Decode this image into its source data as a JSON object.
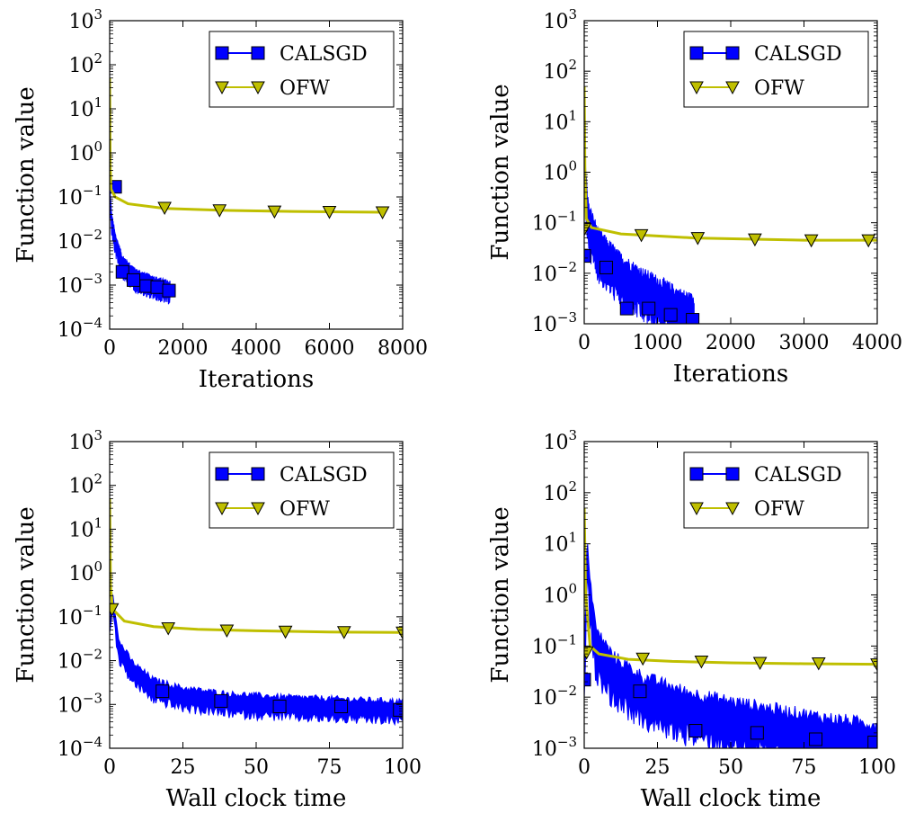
{
  "chart_data": [
    {
      "type": "line",
      "xlabel": "Iterations",
      "ylabel": "Function value",
      "yscale": "log",
      "xlim": [
        0,
        8000
      ],
      "ylim": [
        0.0001,
        1000
      ],
      "xticks": [
        0,
        2000,
        4000,
        6000,
        8000
      ],
      "xtick_labels": [
        "0",
        "2000",
        "4000",
        "6000",
        "8000"
      ],
      "yticks": [
        -4,
        -3,
        -2,
        -1,
        0,
        1,
        2,
        3
      ],
      "grid": false,
      "legend_position": "top-right",
      "series": [
        {
          "name": "CALSGD",
          "color": "#0000ff",
          "marker": "square",
          "noise_band": 0.35,
          "line": [
            [
              0,
              0.15
            ],
            [
              50,
              0.03
            ],
            [
              150,
              0.01
            ],
            [
              350,
              0.003
            ],
            [
              700,
              0.0015
            ],
            [
              1100,
              0.0011
            ],
            [
              1400,
              0.0009
            ],
            [
              1650,
              0.0008
            ]
          ],
          "markers": [
            [
              150,
              0.17
            ],
            [
              350,
              0.002
            ],
            [
              650,
              0.0013
            ],
            [
              1000,
              0.00095
            ],
            [
              1300,
              0.0009
            ],
            [
              1620,
              0.00075
            ]
          ]
        },
        {
          "name": "OFW",
          "color": "#bfbf00",
          "marker": "triangle_down",
          "line": [
            [
              0,
              50
            ],
            [
              15,
              0.5
            ],
            [
              40,
              0.15
            ],
            [
              150,
              0.1
            ],
            [
              500,
              0.07
            ],
            [
              1500,
              0.055
            ],
            [
              3000,
              0.05
            ],
            [
              5000,
              0.047
            ],
            [
              7500,
              0.045
            ]
          ],
          "markers": [
            [
              1500,
              0.057
            ],
            [
              3000,
              0.05
            ],
            [
              4500,
              0.047
            ],
            [
              6000,
              0.046
            ],
            [
              7450,
              0.045
            ]
          ]
        }
      ]
    },
    {
      "type": "line",
      "xlabel": "Iterations",
      "ylabel": "Function value",
      "yscale": "log",
      "xlim": [
        0,
        4000
      ],
      "ylim": [
        0.001,
        1000
      ],
      "xticks": [
        0,
        1000,
        2000,
        3000,
        4000
      ],
      "xtick_labels": [
        "0",
        "1000",
        "2000",
        "3000",
        "4000"
      ],
      "yticks": [
        -3,
        -2,
        -1,
        0,
        1,
        2,
        3
      ],
      "grid": false,
      "legend_position": "top-right",
      "series": [
        {
          "name": "CALSGD",
          "color": "#0000ff",
          "marker": "square",
          "noise_band": 0.7,
          "line": [
            [
              0,
              3
            ],
            [
              20,
              0.5
            ],
            [
              60,
              0.1
            ],
            [
              200,
              0.03
            ],
            [
              500,
              0.01
            ],
            [
              800,
              0.005
            ],
            [
              1100,
              0.003
            ],
            [
              1300,
              0.002
            ],
            [
              1500,
              0.0015
            ]
          ],
          "markers": [
            [
              0,
              0.022
            ],
            [
              300,
              0.013
            ],
            [
              580,
              0.002
            ],
            [
              880,
              0.002
            ],
            [
              1180,
              0.0015
            ],
            [
              1480,
              0.0012
            ]
          ]
        },
        {
          "name": "OFW",
          "color": "#bfbf00",
          "marker": "triangle_down",
          "line": [
            [
              0,
              50
            ],
            [
              10,
              1
            ],
            [
              30,
              0.12
            ],
            [
              100,
              0.08
            ],
            [
              500,
              0.06
            ],
            [
              1500,
              0.05
            ],
            [
              3000,
              0.045
            ],
            [
              4000,
              0.045
            ]
          ],
          "markers": [
            [
              0,
              0.075
            ],
            [
              780,
              0.057
            ],
            [
              1550,
              0.05
            ],
            [
              2330,
              0.047
            ],
            [
              3100,
              0.045
            ],
            [
              3880,
              0.045
            ]
          ]
        }
      ]
    },
    {
      "type": "line",
      "xlabel": "Wall clock time",
      "ylabel": "Function value",
      "yscale": "log",
      "xlim": [
        0,
        100
      ],
      "ylim": [
        0.0001,
        1000
      ],
      "xticks": [
        0,
        25,
        50,
        75,
        100
      ],
      "xtick_labels": [
        "0",
        "25",
        "50",
        "75",
        "100"
      ],
      "yticks": [
        -4,
        -3,
        -2,
        -1,
        0,
        1,
        2,
        3
      ],
      "grid": false,
      "legend_position": "top-right",
      "series": [
        {
          "name": "CALSGD",
          "color": "#0000ff",
          "marker": "square",
          "noise_band": 0.4,
          "line": [
            [
              0,
              0.1
            ],
            [
              1,
              0.3
            ],
            [
              3,
              0.02
            ],
            [
              8,
              0.006
            ],
            [
              15,
              0.0025
            ],
            [
              25,
              0.0016
            ],
            [
              40,
              0.0012
            ],
            [
              60,
              0.001
            ],
            [
              80,
              0.0009
            ],
            [
              100,
              0.0008
            ]
          ],
          "markers": [
            [
              18,
              0.002
            ],
            [
              38,
              0.0012
            ],
            [
              58,
              0.0009
            ],
            [
              79,
              0.0009
            ],
            [
              99,
              0.00075
            ]
          ]
        },
        {
          "name": "OFW",
          "color": "#bfbf00",
          "marker": "triangle_down",
          "line": [
            [
              0,
              50
            ],
            [
              0.3,
              0.5
            ],
            [
              1,
              0.15
            ],
            [
              5,
              0.08
            ],
            [
              15,
              0.06
            ],
            [
              30,
              0.052
            ],
            [
              50,
              0.048
            ],
            [
              75,
              0.045
            ],
            [
              100,
              0.044
            ]
          ],
          "markers": [
            [
              0.8,
              0.15
            ],
            [
              20,
              0.055
            ],
            [
              40,
              0.049
            ],
            [
              60,
              0.046
            ],
            [
              80,
              0.045
            ],
            [
              100,
              0.044
            ]
          ]
        }
      ]
    },
    {
      "type": "line",
      "xlabel": "Wall clock time",
      "ylabel": "Function value",
      "yscale": "log",
      "xlim": [
        0,
        100
      ],
      "ylim": [
        0.001,
        1000
      ],
      "xticks": [
        0,
        25,
        50,
        75,
        100
      ],
      "xtick_labels": [
        "0",
        "25",
        "50",
        "75",
        "100"
      ],
      "yticks": [
        -3,
        -2,
        -1,
        0,
        1,
        2,
        3
      ],
      "grid": false,
      "legend_position": "top-right",
      "series": [
        {
          "name": "CALSGD",
          "color": "#0000ff",
          "marker": "square",
          "noise_band": 0.75,
          "line": [
            [
              0,
              0.02
            ],
            [
              1,
              8
            ],
            [
              2,
              1
            ],
            [
              4,
              0.1
            ],
            [
              10,
              0.03
            ],
            [
              20,
              0.012
            ],
            [
              35,
              0.006
            ],
            [
              50,
              0.004
            ],
            [
              70,
              0.0025
            ],
            [
              85,
              0.0018
            ],
            [
              100,
              0.0014
            ]
          ],
          "markers": [
            [
              0,
              0.022
            ],
            [
              19,
              0.013
            ],
            [
              38,
              0.0022
            ],
            [
              59,
              0.002
            ],
            [
              79,
              0.0015
            ],
            [
              99,
              0.0013
            ]
          ]
        },
        {
          "name": "OFW",
          "color": "#bfbf00",
          "marker": "triangle_down",
          "line": [
            [
              0,
              50
            ],
            [
              0.5,
              1
            ],
            [
              2,
              0.1
            ],
            [
              5,
              0.07
            ],
            [
              15,
              0.055
            ],
            [
              30,
              0.05
            ],
            [
              50,
              0.047
            ],
            [
              75,
              0.045
            ],
            [
              100,
              0.044
            ]
          ],
          "markers": [
            [
              0.8,
              0.075
            ],
            [
              20,
              0.057
            ],
            [
              40,
              0.05
            ],
            [
              60,
              0.047
            ],
            [
              80,
              0.046
            ],
            [
              100,
              0.044
            ]
          ]
        }
      ]
    }
  ]
}
